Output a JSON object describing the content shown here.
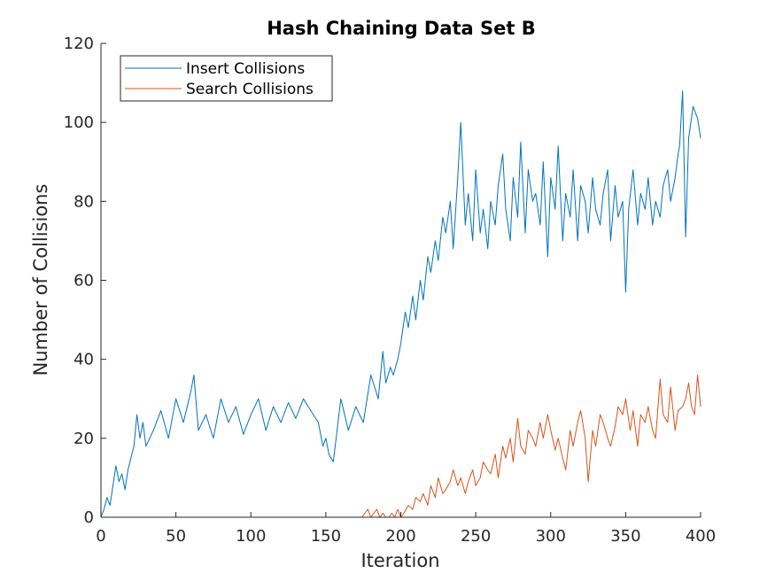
{
  "chart_data": {
    "type": "line",
    "title": "Hash Chaining Data Set B",
    "xlabel": "Iteration",
    "ylabel": "Number of Collisions",
    "xlim": [
      0,
      400
    ],
    "ylim": [
      0,
      120
    ],
    "xticks": [
      0,
      50,
      100,
      150,
      200,
      250,
      300,
      350,
      400
    ],
    "yticks": [
      0,
      20,
      40,
      60,
      80,
      100,
      120
    ],
    "xtick_labels": [
      "0",
      "50",
      "100",
      "150",
      "200",
      "250",
      "300",
      "350",
      "400"
    ],
    "ytick_labels": [
      "0",
      "20",
      "40",
      "60",
      "80",
      "100",
      "120"
    ],
    "grid": false,
    "legend_position": "top-left",
    "series": [
      {
        "name": "Insert Collisions",
        "color": "#0072BD",
        "x": [
          0,
          2,
          4,
          6,
          8,
          10,
          12,
          14,
          16,
          18,
          20,
          22,
          24,
          26,
          28,
          30,
          35,
          40,
          45,
          50,
          55,
          60,
          62,
          65,
          70,
          75,
          80,
          85,
          90,
          95,
          100,
          105,
          110,
          115,
          120,
          125,
          130,
          135,
          140,
          145,
          148,
          150,
          152,
          155,
          160,
          165,
          170,
          175,
          180,
          185,
          188,
          190,
          193,
          195,
          198,
          200,
          203,
          205,
          208,
          210,
          213,
          215,
          218,
          220,
          223,
          225,
          228,
          230,
          233,
          235,
          238,
          240,
          243,
          245,
          248,
          250,
          253,
          255,
          258,
          260,
          263,
          265,
          268,
          270,
          273,
          275,
          278,
          280,
          283,
          285,
          288,
          290,
          293,
          295,
          298,
          300,
          303,
          305,
          308,
          310,
          313,
          315,
          318,
          320,
          323,
          325,
          328,
          330,
          333,
          335,
          338,
          340,
          343,
          345,
          348,
          350,
          352,
          355,
          358,
          360,
          363,
          365,
          368,
          370,
          373,
          375,
          378,
          380,
          383,
          385,
          386,
          388,
          390,
          392,
          395,
          398,
          400
        ],
        "y": [
          0,
          2,
          5,
          3,
          8,
          13,
          9,
          11,
          7,
          12,
          15,
          18,
          26,
          20,
          24,
          18,
          22,
          27,
          20,
          30,
          24,
          32,
          36,
          22,
          26,
          20,
          30,
          24,
          28,
          21,
          26,
          30,
          22,
          28,
          24,
          29,
          25,
          30,
          27,
          24,
          18,
          20,
          16,
          14,
          30,
          22,
          28,
          24,
          36,
          30,
          42,
          34,
          38,
          36,
          40,
          44,
          52,
          48,
          56,
          50,
          60,
          55,
          66,
          62,
          70,
          65,
          76,
          72,
          80,
          68,
          86,
          100,
          74,
          82,
          70,
          88,
          72,
          78,
          68,
          80,
          74,
          84,
          92,
          78,
          70,
          86,
          76,
          95,
          72,
          88,
          80,
          82,
          74,
          90,
          66,
          86,
          78,
          94,
          70,
          82,
          76,
          88,
          70,
          84,
          80,
          72,
          86,
          78,
          74,
          82,
          88,
          70,
          84,
          76,
          80,
          57,
          78,
          88,
          74,
          82,
          78,
          86,
          74,
          80,
          76,
          84,
          88,
          80,
          86,
          92,
          94,
          108,
          71,
          96,
          104,
          101,
          96
        ]
      },
      {
        "name": "Search Collisions",
        "color": "#D95319",
        "x": [
          0,
          50,
          100,
          150,
          170,
          174,
          176,
          178,
          180,
          182,
          184,
          186,
          188,
          190,
          192,
          194,
          196,
          198,
          200,
          202,
          205,
          208,
          210,
          213,
          215,
          218,
          220,
          223,
          225,
          228,
          230,
          233,
          235,
          238,
          240,
          243,
          245,
          248,
          250,
          253,
          255,
          258,
          260,
          263,
          265,
          268,
          270,
          273,
          275,
          278,
          280,
          283,
          285,
          288,
          290,
          293,
          295,
          298,
          300,
          303,
          305,
          308,
          310,
          313,
          315,
          318,
          320,
          323,
          325,
          328,
          330,
          333,
          335,
          338,
          340,
          343,
          345,
          348,
          350,
          353,
          355,
          358,
          360,
          363,
          365,
          368,
          370,
          373,
          375,
          378,
          380,
          383,
          385,
          388,
          390,
          392,
          394,
          396,
          398,
          400
        ],
        "y": [
          0,
          0,
          0,
          0,
          0,
          0,
          1,
          2,
          0,
          1,
          2,
          0,
          1,
          0,
          0,
          1,
          0,
          2,
          0,
          1,
          3,
          2,
          5,
          4,
          6,
          3,
          8,
          5,
          10,
          6,
          7,
          9,
          12,
          8,
          10,
          6,
          9,
          12,
          8,
          10,
          14,
          12,
          11,
          16,
          10,
          18,
          15,
          20,
          14,
          25,
          18,
          16,
          22,
          20,
          18,
          24,
          20,
          26,
          22,
          17,
          20,
          15,
          12,
          22,
          18,
          24,
          27,
          20,
          9,
          22,
          18,
          26,
          24,
          20,
          18,
          23,
          28,
          26,
          30,
          22,
          27,
          18,
          26,
          24,
          28,
          22,
          20,
          35,
          26,
          24,
          33,
          22,
          27,
          28,
          30,
          34,
          28,
          26,
          36,
          28
        ]
      }
    ]
  }
}
